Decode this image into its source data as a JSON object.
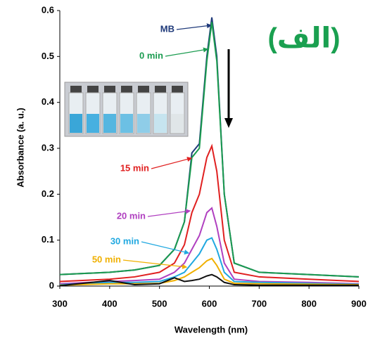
{
  "chart_data": {
    "type": "line",
    "x_label": "Wavelength (nm)",
    "y_label": "Absorbance (a. u.)",
    "annotation": "(الف)",
    "x": [
      300,
      400,
      450,
      500,
      530,
      550,
      565,
      580,
      595,
      605,
      615,
      630,
      650,
      700,
      800,
      900
    ],
    "series": [
      {
        "name": "MB",
        "color": "#1f3a7a",
        "values": [
          0.025,
          0.03,
          0.035,
          0.045,
          0.08,
          0.14,
          0.29,
          0.31,
          0.5,
          0.585,
          0.5,
          0.2,
          0.05,
          0.03,
          0.025,
          0.02
        ]
      },
      {
        "name": "0 min",
        "color": "#1a9b4f",
        "values": [
          0.025,
          0.03,
          0.035,
          0.045,
          0.08,
          0.14,
          0.28,
          0.3,
          0.49,
          0.575,
          0.49,
          0.2,
          0.05,
          0.03,
          0.025,
          0.02
        ]
      },
      {
        "name": "15 min",
        "color": "#e02020",
        "values": [
          0.01,
          0.015,
          0.02,
          0.03,
          0.05,
          0.09,
          0.16,
          0.2,
          0.28,
          0.305,
          0.25,
          0.1,
          0.03,
          0.02,
          0.015,
          0.01
        ]
      },
      {
        "name": "20 min",
        "color": "#b040c0",
        "values": [
          0.005,
          0.01,
          0.012,
          0.015,
          0.03,
          0.05,
          0.08,
          0.11,
          0.16,
          0.17,
          0.13,
          0.05,
          0.015,
          0.01,
          0.008,
          0.005
        ]
      },
      {
        "name": "30 min",
        "color": "#20a8e0",
        "values": [
          0.003,
          0.008,
          0.008,
          0.01,
          0.02,
          0.03,
          0.05,
          0.07,
          0.1,
          0.105,
          0.08,
          0.03,
          0.01,
          0.008,
          0.006,
          0.004
        ]
      },
      {
        "name": "50 min",
        "color": "#f0b000",
        "values": [
          0.002,
          0.005,
          0.005,
          0.006,
          0.012,
          0.02,
          0.03,
          0.04,
          0.055,
          0.06,
          0.045,
          0.015,
          0.006,
          0.005,
          0.004,
          0.003
        ]
      },
      {
        "color": "#111111",
        "values": [
          0.001,
          0.012,
          0.003,
          0.005,
          0.018,
          0.01,
          0.012,
          0.015,
          0.022,
          0.025,
          0.02,
          0.008,
          0.003,
          0.002,
          0.002,
          0.002
        ]
      }
    ],
    "xlim": [
      300,
      900
    ],
    "ylim": [
      0,
      0.6
    ],
    "xticks": [
      300,
      400,
      500,
      600,
      700,
      800,
      900
    ],
    "yticks": [
      0,
      0.1,
      0.2,
      0.3,
      0.4,
      0.5,
      0.6
    ]
  }
}
